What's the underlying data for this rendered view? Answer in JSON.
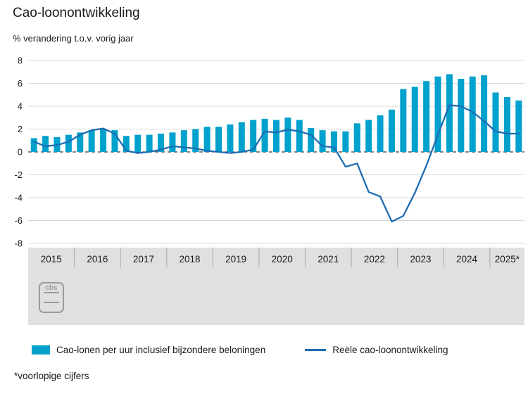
{
  "header": {
    "title": "Cao-loonontwikkeling",
    "subtitle": "% verandering t.o.v. vorig jaar"
  },
  "legend": {
    "bars_label": "Cao-lonen per uur inclusief bijzondere beloningen",
    "line_label": "Reële cao-loonontwikkeling"
  },
  "footnote": "*voorlopige cijfers",
  "logo": {
    "text": "cbs"
  },
  "colors": {
    "bar": "#00a1cd",
    "line": "#1d6cb2",
    "grid": "#d9d9d9",
    "zero_line": "#3a3a3a",
    "axis_band": "#e0e0e0",
    "band_separator": "#a8a8a8",
    "text": "#1a1a1a",
    "logo": "#9b9b9b"
  },
  "chart_data": {
    "type": "bar+line",
    "title": "Cao-loonontwikkeling",
    "subtitle": "% verandering t.o.v. vorig jaar",
    "ylim": [
      -8,
      8
    ],
    "yticks": [
      -8,
      -6,
      -4,
      -2,
      0,
      2,
      4,
      6,
      8
    ],
    "grid": true,
    "zero_line_dashed": true,
    "years": [
      "2015",
      "2016",
      "2017",
      "2018",
      "2019",
      "2020",
      "2021",
      "2022",
      "2023",
      "2024",
      "2025*"
    ],
    "quarters_per_year": [
      4,
      4,
      4,
      4,
      4,
      4,
      4,
      4,
      4,
      4,
      3
    ],
    "series": [
      {
        "name": "Cao-lonen per uur inclusief bijzondere beloningen",
        "type": "bar",
        "values": [
          1.2,
          1.4,
          1.3,
          1.5,
          1.7,
          1.9,
          2.0,
          1.9,
          1.4,
          1.5,
          1.5,
          1.6,
          1.7,
          1.9,
          2.0,
          2.2,
          2.2,
          2.4,
          2.6,
          2.8,
          2.9,
          2.8,
          3.0,
          2.8,
          2.1,
          1.9,
          1.8,
          1.8,
          2.5,
          2.8,
          3.2,
          3.7,
          5.5,
          5.7,
          6.2,
          6.6,
          6.8,
          6.4,
          6.6,
          6.7,
          5.2,
          4.8,
          4.5
        ]
      },
      {
        "name": "Reële cao-loonontwikkeling",
        "type": "line",
        "values": [
          0.9,
          0.5,
          0.6,
          0.9,
          1.5,
          1.9,
          2.05,
          1.6,
          0.1,
          -0.1,
          0.0,
          0.2,
          0.5,
          0.4,
          0.3,
          0.1,
          0.0,
          -0.1,
          0.0,
          0.2,
          1.8,
          1.7,
          1.95,
          1.8,
          1.5,
          0.5,
          0.4,
          -1.3,
          -1.0,
          -3.5,
          -3.9,
          -6.1,
          -5.6,
          -3.6,
          -1.2,
          1.5,
          4.1,
          4.0,
          3.5,
          2.7,
          1.8,
          1.6,
          1.6
        ]
      }
    ],
    "legend_position": "bottom",
    "footnote": "*voorlopige cijfers"
  }
}
